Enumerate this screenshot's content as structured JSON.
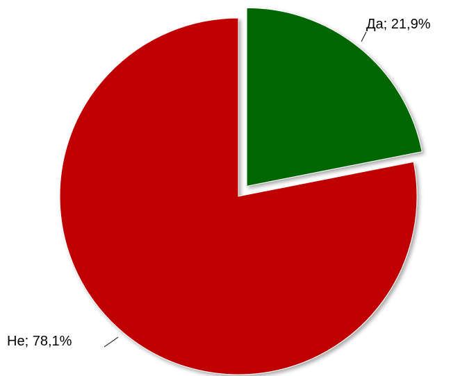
{
  "chart_data": {
    "type": "pie",
    "categories": [
      "Да",
      "Не"
    ],
    "values": [
      21.9,
      78.1
    ],
    "value_labels": [
      "21,9%",
      "78,1%"
    ],
    "label_separator": "; ",
    "colors": [
      "#006600",
      "#c00000"
    ],
    "exploded": [
      true,
      false
    ]
  }
}
